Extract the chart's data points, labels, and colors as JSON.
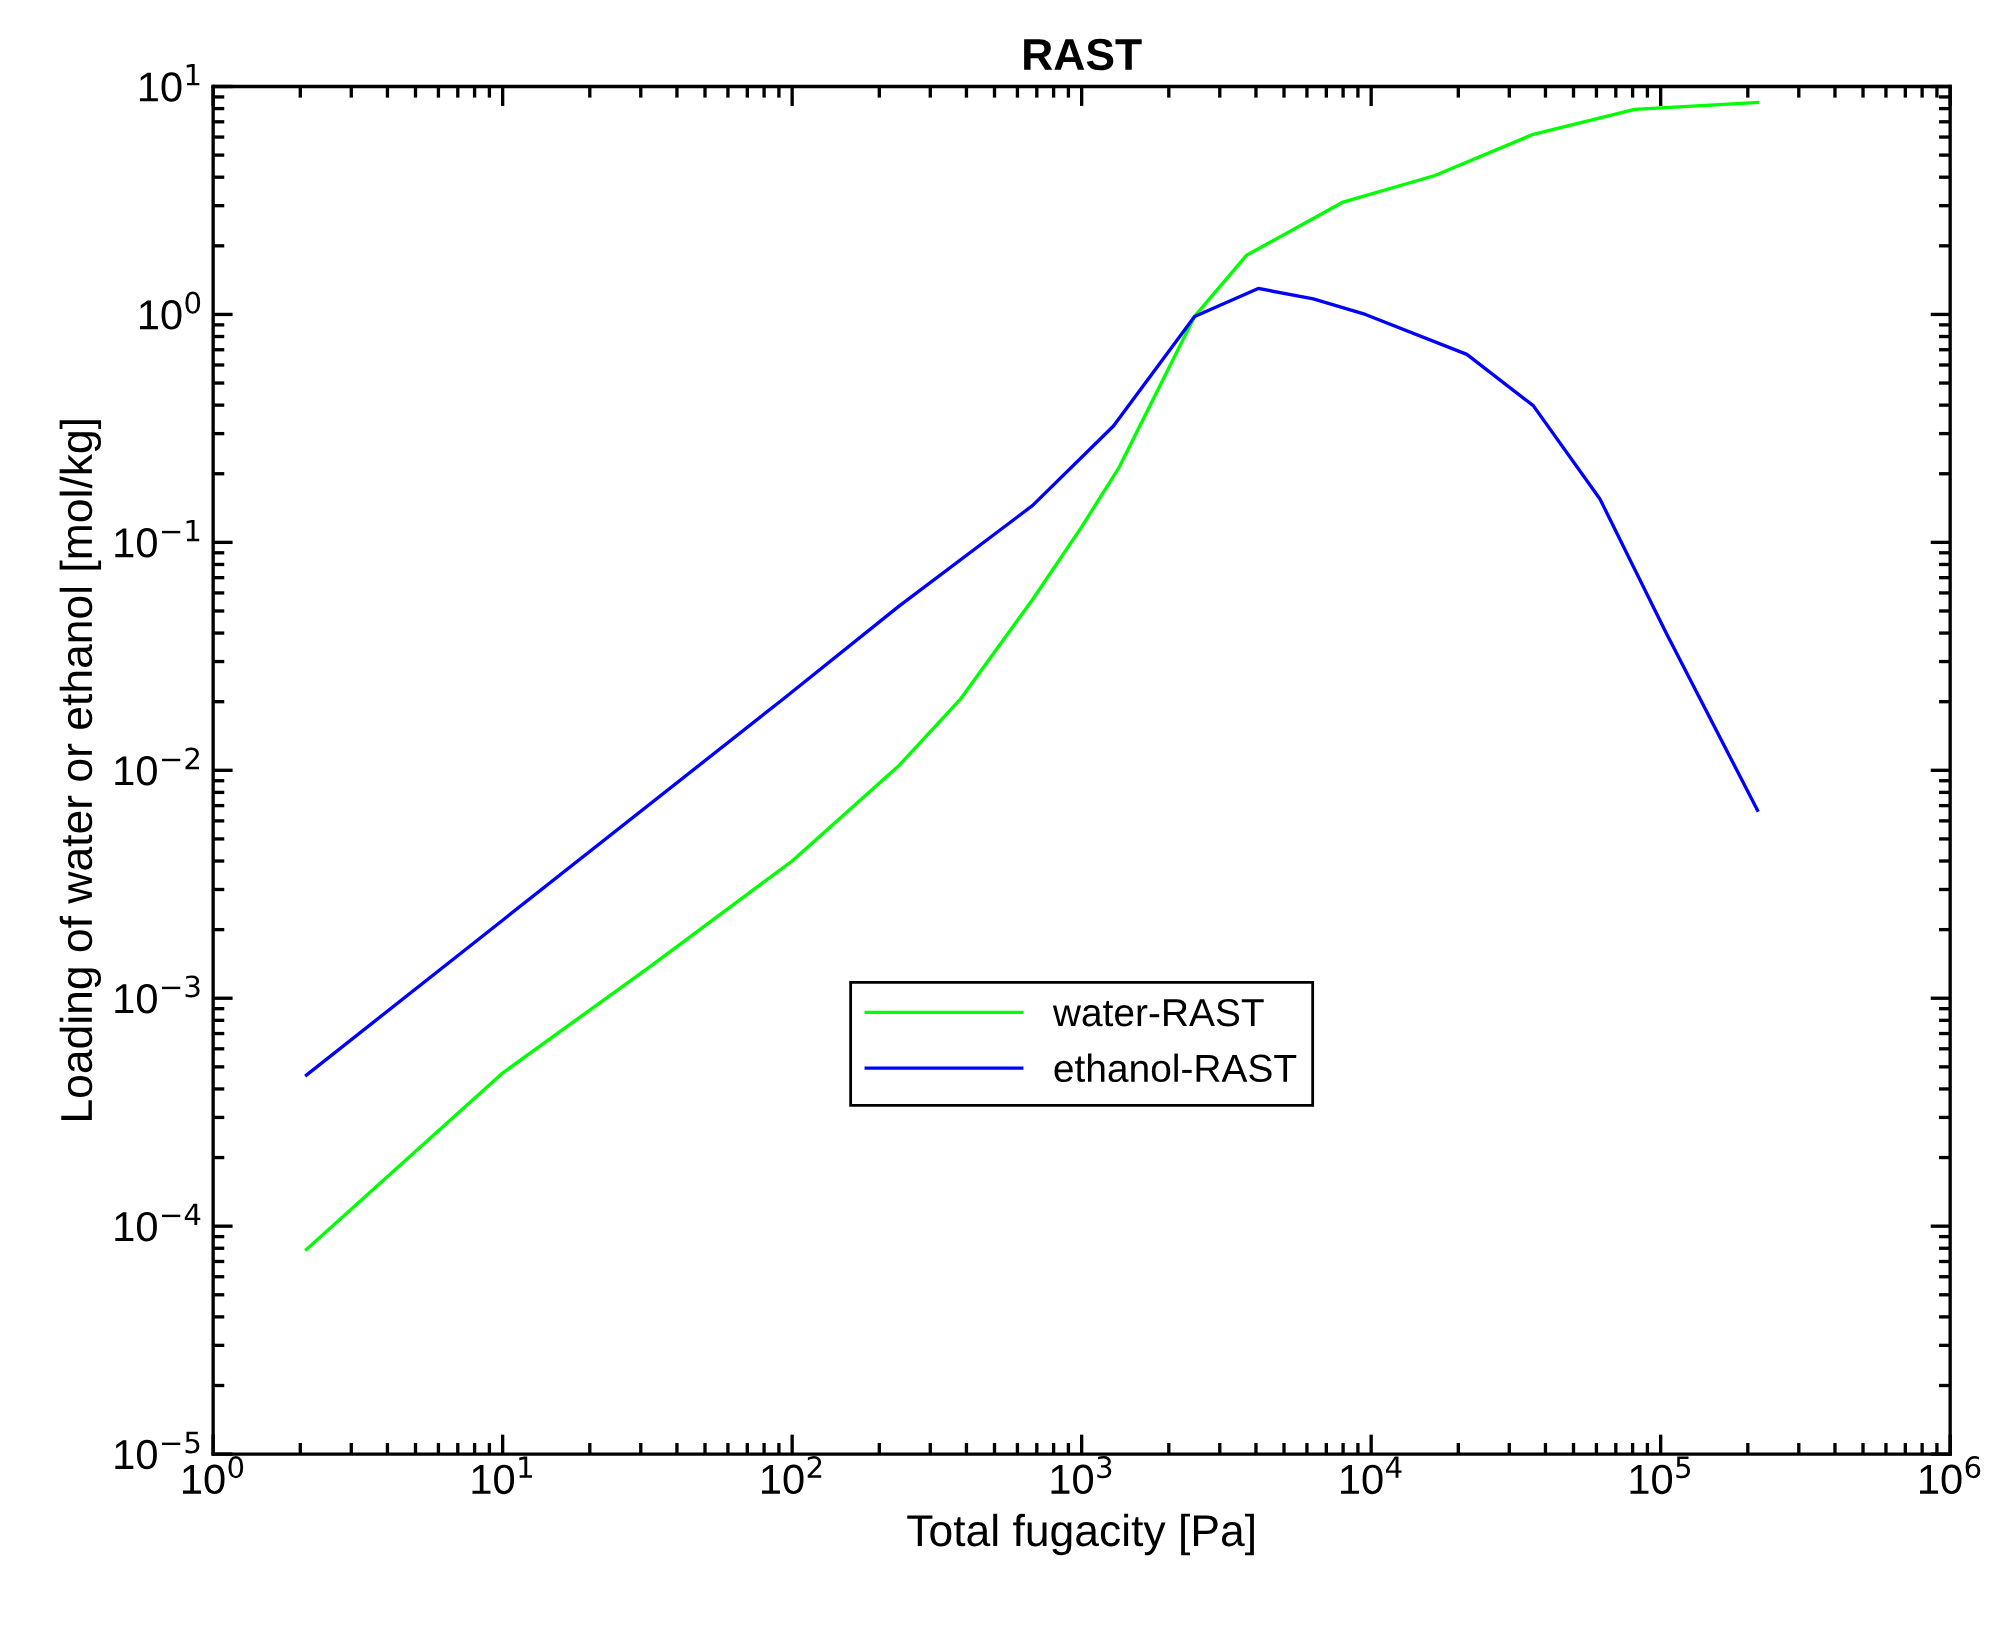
{
  "chart_data": {
    "type": "line",
    "title": "RAST",
    "xlabel": "Total fugacity [Pa]",
    "ylabel": "Loading of water or ethanol [mol/kg]",
    "log": "xy",
    "grid": false,
    "legend": "center",
    "marker": "none",
    "line_style": "solid",
    "xlim": [
      1,
      1000000
    ],
    "ylim": [
      1e-05,
      10
    ],
    "xticks": [
      {
        "value": 1,
        "label": "10$^{0}$"
      },
      {
        "value": 10,
        "label": "10$^{1}$"
      },
      {
        "value": 100,
        "label": "10$^{2}$"
      },
      {
        "value": 1000,
        "label": "10$^{3}$"
      },
      {
        "value": 10000,
        "label": "10$^{4}$"
      },
      {
        "value": 100000,
        "label": "10$^{5}$"
      },
      {
        "value": 1000000,
        "label": "10$^{6}$"
      }
    ],
    "yticks": [
      {
        "value": 1e-05,
        "label": "10$^{−5}$"
      },
      {
        "value": 0.0001,
        "label": "10$^{−4}$"
      },
      {
        "value": 0.001,
        "label": "10$^{−3}$"
      },
      {
        "value": 0.01,
        "label": "10$^{−2}$"
      },
      {
        "value": 0.1,
        "label": "10$^{−1}$"
      },
      {
        "value": 1,
        "label": "10$^{0}$"
      },
      {
        "value": 10,
        "label": "10$^{1}$"
      }
    ],
    "series": [
      {
        "name": "water-RAST",
        "color": "#00ff00",
        "x": [
          2.1,
          10,
          31.6,
          100,
          234,
          380,
          676,
          1000,
          1349,
          2455,
          3715,
          5623,
          7943,
          16600,
          36300,
          81300,
          216000
        ],
        "values": [
          7.9e-05,
          0.00047,
          0.00135,
          0.004,
          0.0105,
          0.0204,
          0.056,
          0.117,
          0.214,
          0.98,
          1.82,
          2.43,
          3.1,
          4.07,
          6.17,
          7.94,
          8.51
        ]
      },
      {
        "name": "ethanol-RAST",
        "color": "#0000ff",
        "x": [
          2.1,
          10,
          92,
          234,
          676,
          1288,
          2455,
          4074,
          6310,
          9550,
          21400,
          36300,
          61700,
          104700,
          216000
        ],
        "values": [
          0.00046,
          0.0022,
          0.0203,
          0.0525,
          0.145,
          0.324,
          0.98,
          1.3,
          1.17,
          1.0,
          0.668,
          0.398,
          0.155,
          0.0398,
          0.00668
        ]
      }
    ]
  }
}
